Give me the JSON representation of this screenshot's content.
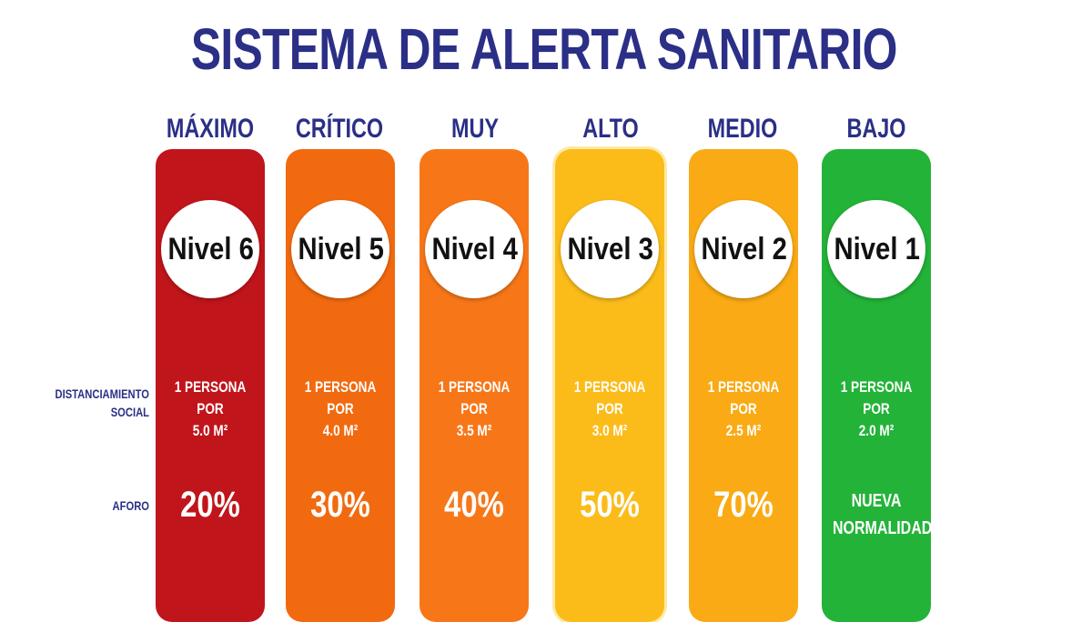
{
  "title": "SISTEMA DE ALERTA SANITARIO",
  "row_labels": {
    "distanciamiento": [
      "DISTANCIAMIENTO",
      "SOCIAL"
    ],
    "aforo": "AFORO"
  },
  "levels": [
    {
      "name": "MÁXIMO",
      "nivel": "Nivel 6",
      "dist_line1": "1 PERSONA POR",
      "dist_line2": "5.0 M²",
      "aforo_line1": "20%",
      "aforo_line2": "",
      "color": "#c0151b"
    },
    {
      "name": "CRÍTICO",
      "nivel": "Nivel 5",
      "dist_line1": "1 PERSONA POR",
      "dist_line2": "4.0 M²",
      "aforo_line1": "30%",
      "aforo_line2": "",
      "color": "#f26a0f"
    },
    {
      "name": "MUY ALTO",
      "nivel": "Nivel 4",
      "dist_line1": "1 PERSONA POR",
      "dist_line2": "3.5 M²",
      "aforo_line1": "40%",
      "aforo_line2": "",
      "color": "#f77718"
    },
    {
      "name": "ALTO",
      "nivel": "Nivel 3",
      "dist_line1": "1 PERSONA POR",
      "dist_line2": "3.0 M²",
      "aforo_line1": "50%",
      "aforo_line2": "",
      "color": "#fbbc1a"
    },
    {
      "name": "MEDIO",
      "nivel": "Nivel 2",
      "dist_line1": "1 PERSONA POR",
      "dist_line2": "2.5 M²",
      "aforo_line1": "70%",
      "aforo_line2": "",
      "color": "#f9aa14"
    },
    {
      "name": "BAJO",
      "nivel": "Nivel 1",
      "dist_line1": "1 PERSONA POR",
      "dist_line2": "2.0 M²",
      "aforo_line1": "NUEVA",
      "aforo_line2": "NORMALIDAD",
      "color": "#23b339"
    }
  ]
}
